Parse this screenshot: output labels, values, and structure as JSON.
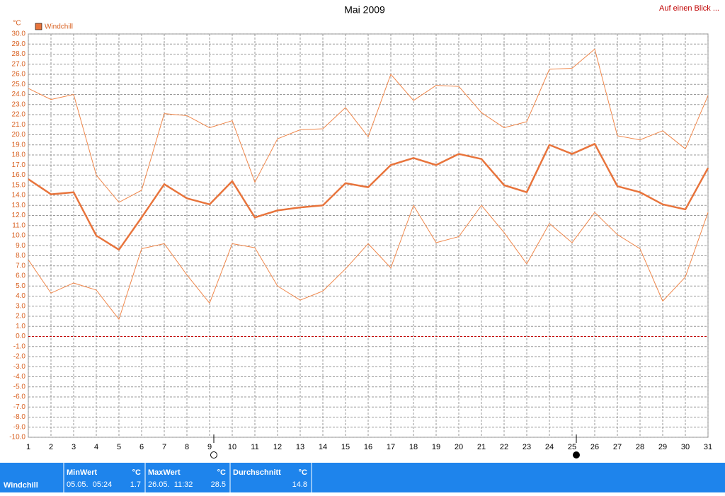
{
  "chart_data": {
    "type": "line",
    "title": "Mai 2009",
    "link": "Auf einen Blick ...",
    "y_unit": "°C",
    "x": [
      1,
      2,
      3,
      4,
      5,
      6,
      7,
      8,
      9,
      10,
      11,
      12,
      13,
      14,
      15,
      16,
      17,
      18,
      19,
      20,
      21,
      22,
      23,
      24,
      25,
      26,
      27,
      28,
      29,
      30,
      31
    ],
    "xlim": [
      1,
      31
    ],
    "xticks": [
      1,
      2,
      3,
      4,
      5,
      6,
      7,
      8,
      9,
      10,
      11,
      12,
      13,
      14,
      15,
      16,
      17,
      18,
      19,
      20,
      21,
      22,
      23,
      24,
      25,
      26,
      27,
      28,
      29,
      30,
      31
    ],
    "ylim": [
      -10,
      30
    ],
    "yticks": [
      {
        "value": 30,
        "label": "30.0"
      },
      {
        "value": 29,
        "label": "29.0"
      },
      {
        "value": 28,
        "label": "28.0"
      },
      {
        "value": 27,
        "label": "27.0"
      },
      {
        "value": 26,
        "label": "26.0"
      },
      {
        "value": 25,
        "label": "25.0"
      },
      {
        "value": 24,
        "label": "24.0"
      },
      {
        "value": 23,
        "label": "23.0"
      },
      {
        "value": 22,
        "label": "22.0"
      },
      {
        "value": 21,
        "label": "21.0"
      },
      {
        "value": 20,
        "label": "20.0"
      },
      {
        "value": 19,
        "label": "19.0"
      },
      {
        "value": 18,
        "label": "18.0"
      },
      {
        "value": 17,
        "label": "17.0"
      },
      {
        "value": 16,
        "label": "16.0"
      },
      {
        "value": 15,
        "label": "15.0"
      },
      {
        "value": 14,
        "label": "14.0"
      },
      {
        "value": 13,
        "label": "13.0"
      },
      {
        "value": 12,
        "label": "12.0"
      },
      {
        "value": 11,
        "label": "11.0"
      },
      {
        "value": 10,
        "label": "10.0"
      },
      {
        "value": 9,
        "label": "9.0"
      },
      {
        "value": 8,
        "label": "8.0"
      },
      {
        "value": 7,
        "label": "7.0"
      },
      {
        "value": 6,
        "label": "6.0"
      },
      {
        "value": 5,
        "label": "5.0"
      },
      {
        "value": 4,
        "label": "4.0"
      },
      {
        "value": 3,
        "label": "3.0"
      },
      {
        "value": 2,
        "label": "2.0"
      },
      {
        "value": 1,
        "label": "1.0"
      },
      {
        "value": 0,
        "label": "0.0"
      },
      {
        "value": -1,
        "label": "-1.0"
      },
      {
        "value": -2,
        "label": "-2.0"
      },
      {
        "value": -3,
        "label": "-3.0"
      },
      {
        "value": -4,
        "label": "-4.0"
      },
      {
        "value": -5,
        "label": "-5.0"
      },
      {
        "value": -6,
        "label": "-6.0"
      },
      {
        "value": -7,
        "label": "-7.0"
      },
      {
        "value": -8,
        "label": "-8.0"
      },
      {
        "value": -9,
        "label": "-9.0"
      },
      {
        "value": -10,
        "label": "-10.0"
      }
    ],
    "grid": true,
    "reference_line": 0,
    "reference_color": "#c00000",
    "legend": "top-left",
    "moon_days": [
      9,
      25
    ],
    "series": [
      {
        "color": "#f0884c",
        "width": 1,
        "values": [
          24.6,
          23.5,
          24.0,
          16.0,
          13.3,
          14.5,
          22.1,
          21.9,
          20.7,
          21.4,
          15.3,
          19.6,
          20.5,
          20.6,
          22.7,
          19.8,
          26.0,
          23.4,
          24.9,
          24.8,
          22.2,
          20.7,
          21.3,
          26.5,
          26.6,
          28.5,
          19.9,
          19.5,
          20.4,
          18.6,
          23.9
        ]
      },
      {
        "name": "Windchill",
        "color": "#e8743c",
        "width": 2.5,
        "values": [
          15.6,
          14.1,
          14.3,
          10.0,
          8.6,
          11.8,
          15.1,
          13.7,
          13.1,
          15.4,
          11.8,
          12.5,
          12.8,
          13.0,
          15.2,
          14.8,
          17.0,
          17.7,
          17.0,
          18.1,
          17.6,
          15.0,
          14.3,
          19.0,
          18.1,
          19.1,
          14.9,
          14.3,
          13.1,
          12.6,
          16.7
        ]
      },
      {
        "color": "#f0884c",
        "width": 1,
        "values": [
          7.6,
          4.3,
          5.3,
          4.6,
          1.7,
          8.7,
          9.2,
          6.1,
          3.3,
          9.2,
          8.8,
          5.0,
          3.6,
          4.5,
          6.7,
          9.2,
          6.8,
          13.0,
          9.3,
          9.9,
          13.0,
          10.3,
          7.2,
          11.2,
          9.3,
          12.3,
          10.1,
          8.7,
          3.5,
          5.9,
          12.3
        ]
      }
    ]
  },
  "summary": {
    "label": "Windchill",
    "unit": "°C",
    "columns": [
      {
        "title": "MinWert",
        "time": "05.05.  05:24",
        "value": 1.7
      },
      {
        "title": "MaxWert",
        "time": "26.05.  11:32",
        "value": 28.5
      },
      {
        "title": "Durchschnitt",
        "value": 14.8
      }
    ]
  }
}
